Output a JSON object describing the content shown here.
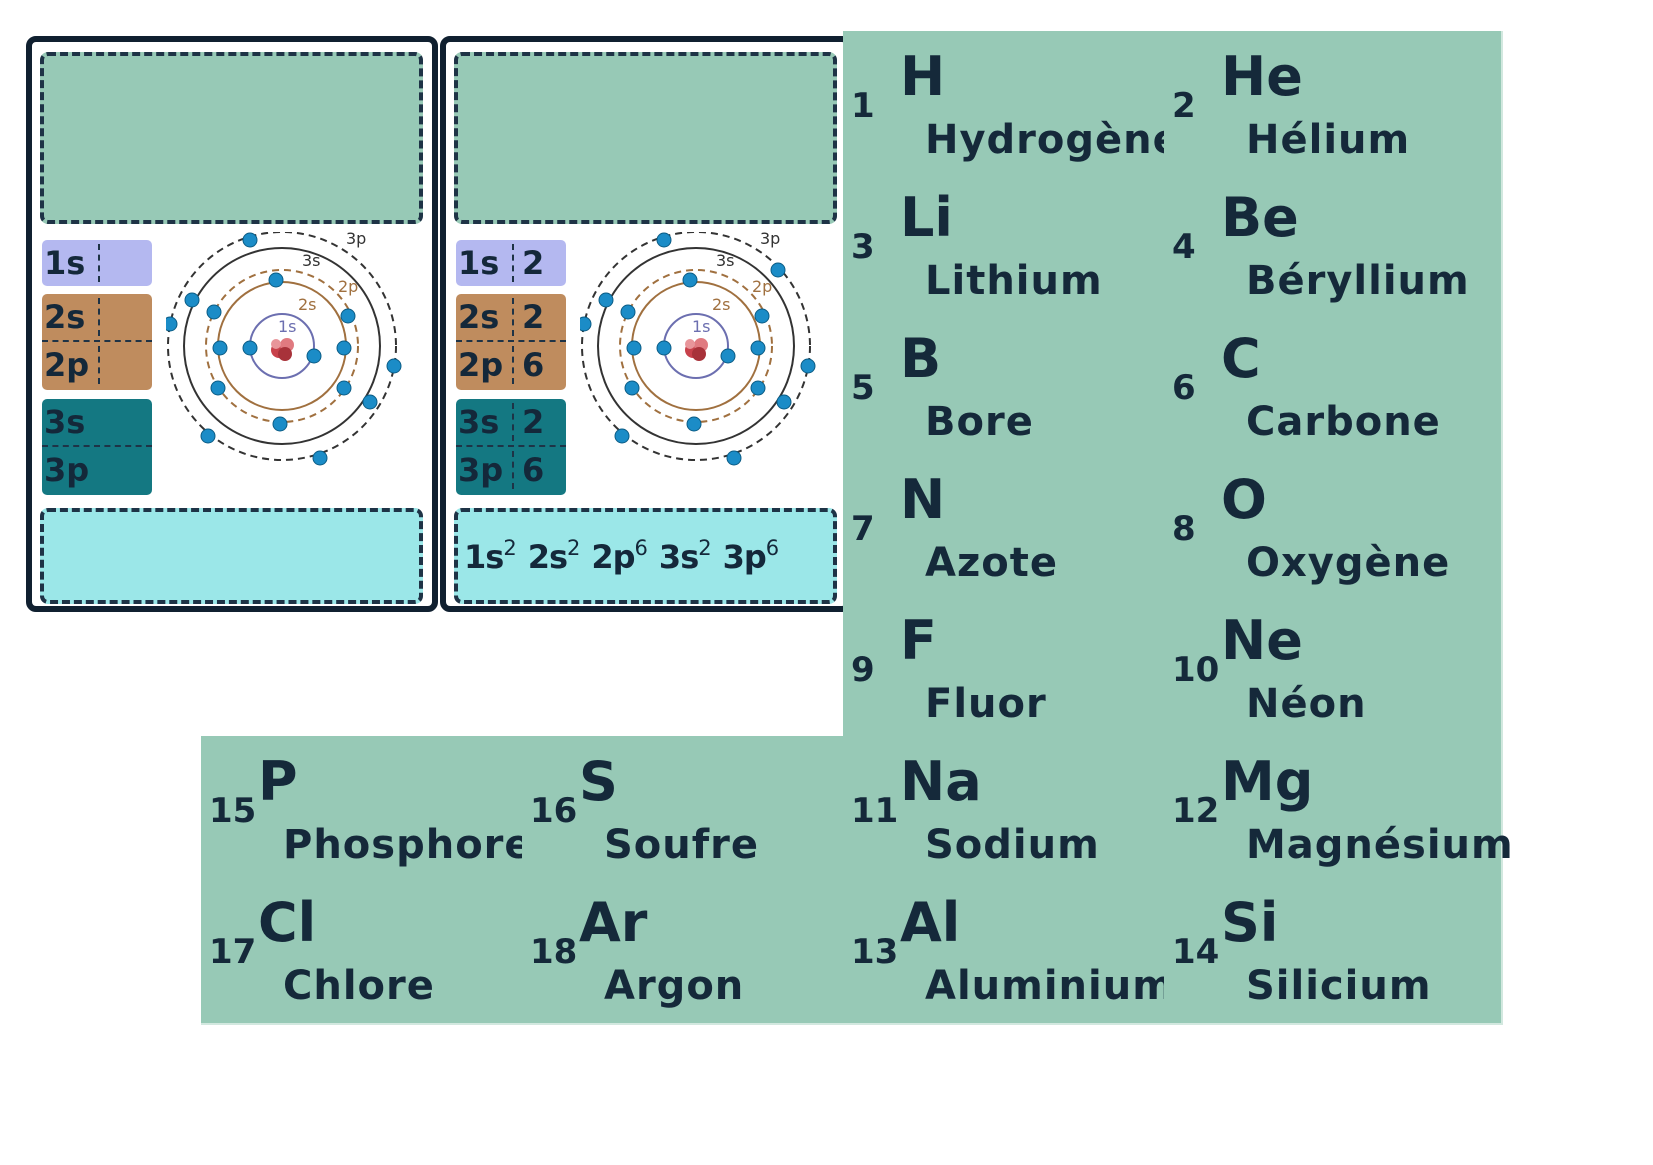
{
  "cards": [
    {
      "subshells": {
        "s1": "1s",
        "s2": "2s",
        "p2": "2p",
        "s3": "3s",
        "p3": "3p"
      },
      "counts": {
        "s1": "",
        "s2": "",
        "p2": "",
        "s3": "",
        "p3": ""
      },
      "formula": []
    },
    {
      "subshells": {
        "s1": "1s",
        "s2": "2s",
        "p2": "2p",
        "s3": "3s",
        "p3": "3p"
      },
      "counts": {
        "s1": "2",
        "s2": "2",
        "p2": "6",
        "s3": "2",
        "p3": "6"
      },
      "formula": [
        {
          "orb": "1s",
          "exp": "2"
        },
        {
          "orb": "2s",
          "exp": "2"
        },
        {
          "orb": "2p",
          "exp": "6"
        },
        {
          "orb": "3s",
          "exp": "2"
        },
        {
          "orb": "3p",
          "exp": "6"
        }
      ]
    }
  ],
  "orbit_labels": {
    "s1": "1s",
    "s2": "2s",
    "p2": "2p",
    "s3": "3s",
    "p3": "3p"
  },
  "elements": [
    {
      "number": "1",
      "symbol": "H",
      "name": "Hydrogène"
    },
    {
      "number": "2",
      "symbol": "He",
      "name": "Hélium"
    },
    {
      "number": "3",
      "symbol": "Li",
      "name": "Lithium"
    },
    {
      "number": "4",
      "symbol": "Be",
      "name": "Béryllium"
    },
    {
      "number": "5",
      "symbol": "B",
      "name": "Bore"
    },
    {
      "number": "6",
      "symbol": "C",
      "name": "Carbone"
    },
    {
      "number": "7",
      "symbol": "N",
      "name": "Azote"
    },
    {
      "number": "8",
      "symbol": "O",
      "name": "Oxygène"
    },
    {
      "number": "9",
      "symbol": "F",
      "name": "Fluor"
    },
    {
      "number": "10",
      "symbol": "Ne",
      "name": "Néon"
    },
    {
      "number": "15",
      "symbol": "P",
      "name": "Phosphore"
    },
    {
      "number": "16",
      "symbol": "S",
      "name": "Soufre"
    },
    {
      "number": "11",
      "symbol": "Na",
      "name": "Sodium"
    },
    {
      "number": "12",
      "symbol": "Mg",
      "name": "Magnésium"
    },
    {
      "number": "17",
      "symbol": "Cl",
      "name": "Chlore"
    },
    {
      "number": "18",
      "symbol": "Ar",
      "name": "Argon"
    },
    {
      "number": "13",
      "symbol": "Al",
      "name": "Aluminium"
    },
    {
      "number": "14",
      "symbol": "Si",
      "name": "Silicium"
    }
  ],
  "colors": {
    "tile": "#97c9b6",
    "formula_box": "#9be7e8",
    "shell_1s": "#b4b8f0",
    "shell_2": "#bf8c5e",
    "shell_3": "#147882",
    "electron": "#1b8cc7",
    "nucleus": "#c8414b"
  }
}
